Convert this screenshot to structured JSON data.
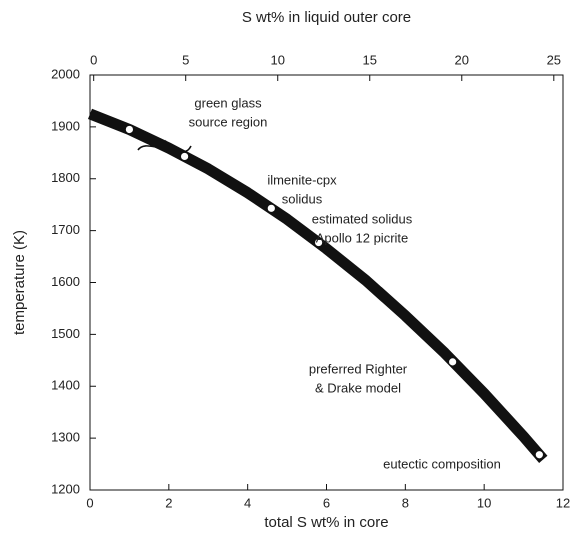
{
  "chart_data": {
    "type": "line",
    "x_label": "total S wt% in core",
    "x2_label": "S wt% in liquid outer core",
    "y_label": "temperature (K)",
    "xlim": [
      0,
      12
    ],
    "xticks": [
      0,
      2,
      4,
      6,
      8,
      10,
      12
    ],
    "x2lim": [
      -0.2,
      25.5
    ],
    "x2ticks": [
      0,
      5,
      10,
      15,
      20,
      25
    ],
    "ylim": [
      1200,
      2000
    ],
    "yticks": [
      1200,
      1300,
      1400,
      1500,
      1600,
      1700,
      1800,
      1900,
      2000
    ],
    "series": [
      {
        "color": "#111111",
        "x": [
          0,
          1,
          2,
          3,
          4,
          5,
          6,
          7,
          8,
          9,
          10,
          11,
          11.5
        ],
        "values": [
          1925,
          1895,
          1859,
          1819,
          1773,
          1722,
          1665,
          1604,
          1536,
          1464,
          1386,
          1303,
          1259
        ]
      },
      {
        "color": "#ffffff",
        "marker": "circle",
        "x": [
          1.0,
          2.4,
          4.6,
          5.8,
          9.2,
          11.4
        ],
        "values": [
          1895,
          1843,
          1743,
          1677,
          1447,
          1268
        ]
      }
    ],
    "annotations": [
      {
        "lines": [
          "green glass",
          "source region"
        ]
      },
      {
        "lines": [
          "ilmenite-cpx",
          "solidus"
        ]
      },
      {
        "lines": [
          "estimated solidus",
          "Apollo 12 picrite"
        ]
      },
      {
        "lines": [
          "preferred Righter",
          "& Drake model"
        ]
      },
      {
        "lines": [
          "eutectic composition"
        ]
      }
    ]
  }
}
